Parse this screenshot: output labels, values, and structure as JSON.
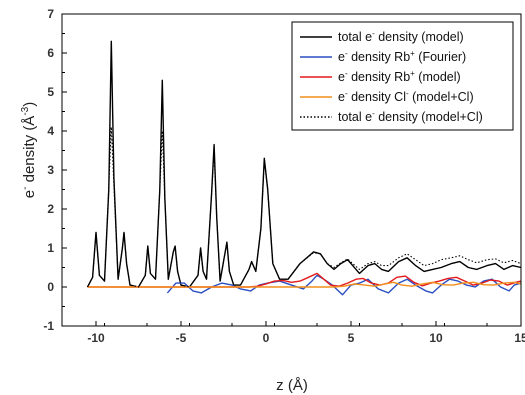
{
  "chart_data": {
    "type": "line",
    "title": "",
    "xlabel": {
      "main": "z (",
      "special": "Å",
      "tail": ")"
    },
    "ylabel": {
      "main": "e",
      "sup": "-",
      "mid": " density (",
      "unit": "Å",
      "unit_sup": "-3",
      "tail": ")"
    },
    "xlim": [
      -12,
      15
    ],
    "ylim": [
      -1,
      7
    ],
    "xticks": [
      -10,
      -5,
      0,
      5,
      10,
      15
    ],
    "xtick_labels": [
      "-10",
      "-5",
      "0",
      "5",
      "10",
      "15"
    ],
    "yticks": [
      -1,
      0,
      1,
      2,
      3,
      4,
      5,
      6,
      7
    ],
    "ytick_labels": [
      "-1",
      "0",
      "1",
      "2",
      "3",
      "4",
      "5",
      "6",
      "7"
    ],
    "legend_position": "top-right",
    "series": [
      {
        "name": "total e- density (model)",
        "legend": {
          "pre": "total e",
          "sup": "-",
          "post": " density (model)"
        },
        "color": "#000000",
        "dash": "solid",
        "points": [
          [
            -10.5,
            0
          ],
          [
            -10.2,
            0.25
          ],
          [
            -10.0,
            1.4
          ],
          [
            -9.8,
            0.3
          ],
          [
            -9.5,
            0.15
          ],
          [
            -9.25,
            2.5
          ],
          [
            -9.1,
            6.3
          ],
          [
            -8.95,
            2.8
          ],
          [
            -8.7,
            0.2
          ],
          [
            -8.45,
            1.0
          ],
          [
            -8.35,
            1.4
          ],
          [
            -8.2,
            0.6
          ],
          [
            -8.0,
            0.05
          ],
          [
            -7.5,
            0
          ],
          [
            -7.1,
            0.3
          ],
          [
            -6.95,
            1.05
          ],
          [
            -6.8,
            0.35
          ],
          [
            -6.5,
            0.2
          ],
          [
            -6.25,
            2.5
          ],
          [
            -6.1,
            5.3
          ],
          [
            -5.95,
            2.3
          ],
          [
            -5.75,
            0.2
          ],
          [
            -5.45,
            0.9
          ],
          [
            -5.35,
            1.05
          ],
          [
            -5.2,
            0.4
          ],
          [
            -5.0,
            0.05
          ],
          [
            -4.5,
            0
          ],
          [
            -4.0,
            0.3
          ],
          [
            -3.85,
            1.0
          ],
          [
            -3.7,
            0.4
          ],
          [
            -3.5,
            0.2
          ],
          [
            -3.2,
            2.4
          ],
          [
            -3.05,
            3.65
          ],
          [
            -2.9,
            1.8
          ],
          [
            -2.7,
            0.15
          ],
          [
            -2.4,
            0.9
          ],
          [
            -2.3,
            1.15
          ],
          [
            -2.15,
            0.4
          ],
          [
            -1.9,
            0.05
          ],
          [
            -1.5,
            0.05
          ],
          [
            -1.0,
            0.45
          ],
          [
            -0.85,
            0.65
          ],
          [
            -0.6,
            0.4
          ],
          [
            -0.3,
            1.5
          ],
          [
            -0.1,
            3.3
          ],
          [
            0.1,
            2.5
          ],
          [
            0.4,
            0.6
          ],
          [
            0.8,
            0.2
          ],
          [
            1.3,
            0.2
          ],
          [
            2.0,
            0.6
          ],
          [
            2.8,
            0.9
          ],
          [
            3.2,
            0.85
          ],
          [
            3.6,
            0.6
          ],
          [
            4.0,
            0.45
          ],
          [
            4.4,
            0.6
          ],
          [
            4.8,
            0.7
          ],
          [
            5.1,
            0.55
          ],
          [
            5.5,
            0.35
          ],
          [
            6.0,
            0.55
          ],
          [
            6.4,
            0.6
          ],
          [
            6.8,
            0.45
          ],
          [
            7.2,
            0.4
          ],
          [
            7.8,
            0.65
          ],
          [
            8.3,
            0.75
          ],
          [
            8.8,
            0.55
          ],
          [
            9.3,
            0.4
          ],
          [
            9.8,
            0.45
          ],
          [
            10.3,
            0.5
          ],
          [
            10.9,
            0.6
          ],
          [
            11.4,
            0.65
          ],
          [
            11.9,
            0.5
          ],
          [
            12.4,
            0.45
          ],
          [
            13.0,
            0.55
          ],
          [
            13.5,
            0.6
          ],
          [
            14.0,
            0.45
          ],
          [
            14.5,
            0.55
          ],
          [
            15,
            0.5
          ]
        ]
      },
      {
        "name": "e- density Rb+ (Fourier)",
        "legend": {
          "pre": "e",
          "sup": "-",
          "post": " density Rb",
          "sup2": "+",
          "post2": " (Fourier)"
        },
        "color": "#2a4fc2",
        "dash": "solid",
        "points": [
          [
            -5.8,
            -0.15
          ],
          [
            -5.3,
            0.1
          ],
          [
            -4.8,
            0.1
          ],
          [
            -4.3,
            -0.1
          ],
          [
            -3.8,
            -0.15
          ],
          [
            -3.2,
            0
          ],
          [
            -2.6,
            0.1
          ],
          [
            -2.0,
            0.05
          ],
          [
            -1.5,
            -0.05
          ],
          [
            -0.9,
            -0.1
          ],
          [
            -0.4,
            0.05
          ],
          [
            0.1,
            0.1
          ],
          [
            0.8,
            0.15
          ],
          [
            1.5,
            0.05
          ],
          [
            2.2,
            -0.05
          ],
          [
            2.7,
            0.15
          ],
          [
            3.0,
            0.3
          ],
          [
            3.4,
            0.2
          ],
          [
            3.9,
            0.05
          ],
          [
            4.5,
            -0.2
          ],
          [
            5.0,
            0.05
          ],
          [
            5.5,
            0.1
          ],
          [
            6.0,
            0.2
          ],
          [
            6.6,
            -0.05
          ],
          [
            7.2,
            -0.15
          ],
          [
            7.8,
            0.1
          ],
          [
            8.3,
            0.2
          ],
          [
            8.8,
            0.05
          ],
          [
            9.4,
            -0.1
          ],
          [
            9.8,
            -0.15
          ],
          [
            10.3,
            0.05
          ],
          [
            10.8,
            0.2
          ],
          [
            11.3,
            0.15
          ],
          [
            11.8,
            0.05
          ],
          [
            12.3,
            0
          ],
          [
            12.8,
            0.15
          ],
          [
            13.3,
            0.2
          ],
          [
            13.8,
            0
          ],
          [
            14.3,
            -0.1
          ],
          [
            14.6,
            0.05
          ],
          [
            15,
            0.1
          ]
        ]
      },
      {
        "name": "e- density Rb+ (model)",
        "legend": {
          "pre": "e",
          "sup": "-",
          "post": " density Rb",
          "sup2": "+",
          "post2": " (model)"
        },
        "color": "#e31a1c",
        "dash": "solid",
        "points": [
          [
            -10.5,
            0
          ],
          [
            -1.0,
            0
          ],
          [
            -0.5,
            0.02
          ],
          [
            0,
            0.08
          ],
          [
            0.5,
            0.15
          ],
          [
            1.0,
            0.17
          ],
          [
            1.5,
            0.12
          ],
          [
            2.0,
            0.15
          ],
          [
            2.5,
            0.25
          ],
          [
            3.0,
            0.35
          ],
          [
            3.4,
            0.2
          ],
          [
            3.8,
            0.05
          ],
          [
            4.3,
            0.02
          ],
          [
            4.8,
            0.1
          ],
          [
            5.3,
            0.2
          ],
          [
            5.7,
            0.22
          ],
          [
            6.2,
            0.1
          ],
          [
            6.7,
            0.05
          ],
          [
            7.2,
            0.1
          ],
          [
            7.7,
            0.25
          ],
          [
            8.2,
            0.28
          ],
          [
            8.7,
            0.12
          ],
          [
            9.2,
            0.03
          ],
          [
            9.7,
            0.1
          ],
          [
            10.2,
            0.15
          ],
          [
            10.7,
            0.22
          ],
          [
            11.2,
            0.25
          ],
          [
            11.7,
            0.15
          ],
          [
            12.2,
            0.05
          ],
          [
            12.7,
            0.1
          ],
          [
            13.2,
            0.18
          ],
          [
            13.7,
            0.15
          ],
          [
            14.2,
            0.05
          ],
          [
            14.7,
            0.12
          ],
          [
            15,
            0.15
          ]
        ]
      },
      {
        "name": "e- density Cl- (model+Cl)",
        "legend": {
          "pre": "e",
          "sup": "-",
          "post": " density Cl",
          "sup2": "-",
          "post2": " (model+Cl)"
        },
        "color": "#f28e1c",
        "dash": "solid",
        "points": [
          [
            -10.5,
            0
          ],
          [
            4.0,
            0
          ],
          [
            4.6,
            0.02
          ],
          [
            5.2,
            0.08
          ],
          [
            5.8,
            0.05
          ],
          [
            6.4,
            0.02
          ],
          [
            7.0,
            0.08
          ],
          [
            7.5,
            0.12
          ],
          [
            8.0,
            0.05
          ],
          [
            8.6,
            0.02
          ],
          [
            9.2,
            0.08
          ],
          [
            9.8,
            0.12
          ],
          [
            10.4,
            0.06
          ],
          [
            11.0,
            0.05
          ],
          [
            11.6,
            0.1
          ],
          [
            12.2,
            0.12
          ],
          [
            12.8,
            0.06
          ],
          [
            13.4,
            0.05
          ],
          [
            14.0,
            0.1
          ],
          [
            14.6,
            0.12
          ],
          [
            15,
            0.08
          ]
        ]
      },
      {
        "name": "total e- density (model+Cl)",
        "legend": {
          "pre": "total e",
          "sup": "-",
          "post": " density (model+Cl)"
        },
        "color": "#000000",
        "dash": "dotted",
        "points": [
          [
            -10.5,
            0
          ],
          [
            -10.2,
            0.25
          ],
          [
            -10.0,
            1.4
          ],
          [
            -9.8,
            0.3
          ],
          [
            -9.5,
            0.15
          ],
          [
            -9.25,
            2.6
          ],
          [
            -9.1,
            4.1
          ],
          [
            -8.95,
            2.6
          ],
          [
            -8.7,
            0.2
          ],
          [
            -8.45,
            1.0
          ],
          [
            -8.35,
            1.4
          ],
          [
            -8.2,
            0.6
          ],
          [
            -8.0,
            0.05
          ],
          [
            -7.5,
            0
          ],
          [
            -7.1,
            0.3
          ],
          [
            -6.95,
            1.05
          ],
          [
            -6.8,
            0.35
          ],
          [
            -6.5,
            0.2
          ],
          [
            -6.25,
            2.5
          ],
          [
            -6.1,
            4.0
          ],
          [
            -5.95,
            2.3
          ],
          [
            -5.75,
            0.2
          ],
          [
            -5.45,
            0.9
          ],
          [
            -5.35,
            1.05
          ],
          [
            -5.2,
            0.4
          ],
          [
            -5.0,
            0.05
          ],
          [
            -4.5,
            0
          ],
          [
            -4.0,
            0.3
          ],
          [
            -3.85,
            1.0
          ],
          [
            -3.7,
            0.4
          ],
          [
            -3.5,
            0.2
          ],
          [
            -3.2,
            2.4
          ],
          [
            -3.05,
            3.5
          ],
          [
            -2.9,
            1.8
          ],
          [
            -2.7,
            0.15
          ],
          [
            -2.4,
            0.9
          ],
          [
            -2.3,
            1.15
          ],
          [
            -2.15,
            0.4
          ],
          [
            -1.9,
            0.05
          ],
          [
            -1.5,
            0.05
          ],
          [
            -1.0,
            0.45
          ],
          [
            -0.85,
            0.65
          ],
          [
            -0.6,
            0.4
          ],
          [
            -0.3,
            1.5
          ],
          [
            -0.1,
            3.25
          ],
          [
            0.1,
            2.5
          ],
          [
            0.4,
            0.6
          ],
          [
            0.8,
            0.2
          ],
          [
            1.3,
            0.2
          ],
          [
            2.0,
            0.6
          ],
          [
            2.8,
            0.88
          ],
          [
            3.2,
            0.85
          ],
          [
            3.6,
            0.6
          ],
          [
            4.0,
            0.5
          ],
          [
            4.4,
            0.62
          ],
          [
            4.8,
            0.72
          ],
          [
            5.1,
            0.6
          ],
          [
            5.5,
            0.45
          ],
          [
            6.0,
            0.6
          ],
          [
            6.4,
            0.65
          ],
          [
            6.8,
            0.55
          ],
          [
            7.2,
            0.55
          ],
          [
            7.8,
            0.75
          ],
          [
            8.3,
            0.85
          ],
          [
            8.8,
            0.7
          ],
          [
            9.3,
            0.55
          ],
          [
            9.8,
            0.6
          ],
          [
            10.3,
            0.7
          ],
          [
            10.9,
            0.75
          ],
          [
            11.4,
            0.8
          ],
          [
            11.9,
            0.7
          ],
          [
            12.4,
            0.62
          ],
          [
            13.0,
            0.7
          ],
          [
            13.5,
            0.72
          ],
          [
            14.0,
            0.62
          ],
          [
            14.5,
            0.68
          ],
          [
            15,
            0.6
          ]
        ]
      }
    ]
  }
}
